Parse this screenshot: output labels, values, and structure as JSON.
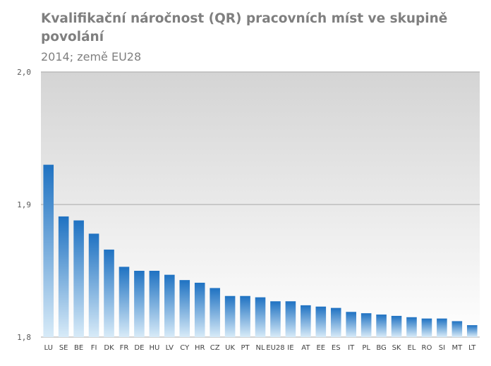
{
  "title": "Kvalifikační náročnost (QR)  pracovních míst ve skupině povolání",
  "subtitle": "2014; země EU28",
  "chart_data": {
    "type": "bar",
    "title": "Kvalifikační náročnost (QR)  pracovních míst ve skupině povolání",
    "subtitle": "2014; země EU28",
    "xlabel": "",
    "ylabel": "",
    "ylim": [
      1.8,
      2.0
    ],
    "yticks": [
      "1,8",
      "1,9",
      "2,0"
    ],
    "grid": true,
    "categories": [
      "LU",
      "SE",
      "BE",
      "FI",
      "DK",
      "FR",
      "DE",
      "HU",
      "LV",
      "CY",
      "HR",
      "CZ",
      "UK",
      "PT",
      "NL",
      "EU28",
      "IE",
      "AT",
      "EE",
      "ES",
      "IT",
      "PL",
      "BG",
      "SK",
      "EL",
      "RO",
      "SI",
      "MT",
      "LT"
    ],
    "values": [
      1.93,
      1.891,
      1.888,
      1.878,
      1.866,
      1.853,
      1.85,
      1.85,
      1.847,
      1.843,
      1.841,
      1.837,
      1.831,
      1.831,
      1.83,
      1.827,
      1.827,
      1.824,
      1.823,
      1.822,
      1.819,
      1.818,
      1.817,
      1.816,
      1.815,
      1.814,
      1.814,
      1.812,
      1.809
    ],
    "colors": {
      "bar_top": "#1f72c2",
      "bar_bottom": "#d8ebf8",
      "plot_top": "#d4d4d4",
      "plot_bottom": "#ffffff",
      "grid": "#a6a6a6"
    }
  }
}
